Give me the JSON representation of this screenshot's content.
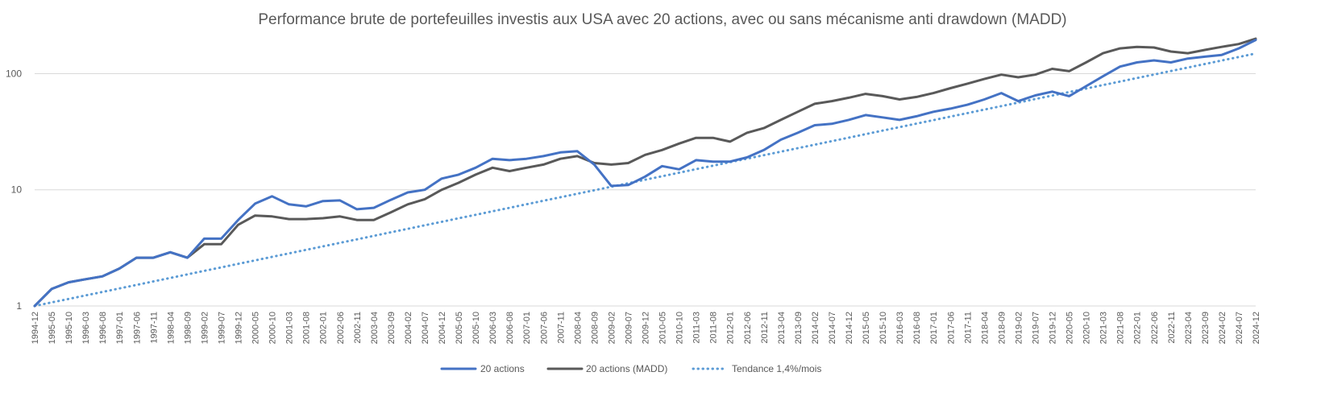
{
  "chart_data": {
    "type": "line",
    "title": "Performance brute de portefeuilles investis aux USA avec 20 actions, avec ou sans mécanisme anti drawdown (MADD)",
    "y_scale": "log",
    "ylim": [
      1,
      210
    ],
    "y_ticks": [
      "1",
      "10",
      "100"
    ],
    "y_tick_values": [
      1,
      10,
      100
    ],
    "grid": "horizontal",
    "legend_position": "bottom",
    "x_tick_labels": [
      "1994-12",
      "1995-05",
      "1995-10",
      "1996-03",
      "1996-08",
      "1997-01",
      "1997-06",
      "1997-11",
      "1998-04",
      "1998-09",
      "1999-02",
      "1999-07",
      "1999-12",
      "2000-05",
      "2000-10",
      "2001-03",
      "2001-08",
      "2002-01",
      "2002-06",
      "2002-11",
      "2003-04",
      "2003-09",
      "2004-02",
      "2004-07",
      "2004-12",
      "2005-05",
      "2005-10",
      "2006-03",
      "2006-08",
      "2007-01",
      "2007-06",
      "2007-11",
      "2008-04",
      "2008-09",
      "2009-02",
      "2009-07",
      "2009-12",
      "2010-05",
      "2010-10",
      "2011-03",
      "2011-08",
      "2012-01",
      "2012-06",
      "2012-11",
      "2013-04",
      "2013-09",
      "2014-02",
      "2014-07",
      "2014-12",
      "2015-05",
      "2015-10",
      "2016-03",
      "2016-08",
      "2017-01",
      "2017-06",
      "2017-11",
      "2018-04",
      "2018-09",
      "2019-02",
      "2019-07",
      "2019-12",
      "2020-05",
      "2020-10",
      "2021-03",
      "2021-08",
      "2022-01",
      "2022-06",
      "2022-11",
      "2023-04",
      "2023-09",
      "2024-02",
      "2024-07",
      "2024-12"
    ],
    "series": [
      {
        "name": "20 actions",
        "color": "#4472c4",
        "style": "solid",
        "values": [
          1,
          1.4,
          1.6,
          1.7,
          1.8,
          2.1,
          2.6,
          2.6,
          2.9,
          2.6,
          3.8,
          3.8,
          5.5,
          7.6,
          8.8,
          7.5,
          7.2,
          8.0,
          8.1,
          6.8,
          7.0,
          8.2,
          9.5,
          10.0,
          12.5,
          13.5,
          15.5,
          18.5,
          18.0,
          18.5,
          19.5,
          21.0,
          21.5,
          16.5,
          10.8,
          11.0,
          13.0,
          16.0,
          15.0,
          18.0,
          17.5,
          17.5,
          19.0,
          22.0,
          27.0,
          31.0,
          36.0,
          37.0,
          40.0,
          44.0,
          42.0,
          40.0,
          43.0,
          47.0,
          50.0,
          54.0,
          60.0,
          68.0,
          58.0,
          65.0,
          70.0,
          64.0,
          78.0,
          95.0,
          115.0,
          125.0,
          130.0,
          125.0,
          135.0,
          140.0,
          145.0,
          165.0,
          195.0
        ]
      },
      {
        "name": "20 actions (MADD)",
        "color": "#595959",
        "style": "solid",
        "values": [
          1,
          1.4,
          1.6,
          1.7,
          1.8,
          2.1,
          2.6,
          2.6,
          2.9,
          2.6,
          3.4,
          3.4,
          5.0,
          6.0,
          5.9,
          5.6,
          5.6,
          5.7,
          5.9,
          5.5,
          5.5,
          6.4,
          7.5,
          8.3,
          10.0,
          11.5,
          13.5,
          15.5,
          14.5,
          15.5,
          16.5,
          18.5,
          19.5,
          17.0,
          16.5,
          17.0,
          20.0,
          22.0,
          25.0,
          28.0,
          28.0,
          26.0,
          31.0,
          34.0,
          40.0,
          47.0,
          55.0,
          58.0,
          62.0,
          67.0,
          64.0,
          60.0,
          63.0,
          68.0,
          75.0,
          82.0,
          90.0,
          98.0,
          93.0,
          98.0,
          110.0,
          105.0,
          125.0,
          150.0,
          165.0,
          170.0,
          168.0,
          155.0,
          150.0,
          160.0,
          170.0,
          180.0,
          200.0
        ]
      },
      {
        "name": "Tendance 1,4%/mois",
        "color": "#5b9bd5",
        "style": "dotted",
        "start_value": 1,
        "monthly_growth_pct": 1.4
      }
    ]
  }
}
